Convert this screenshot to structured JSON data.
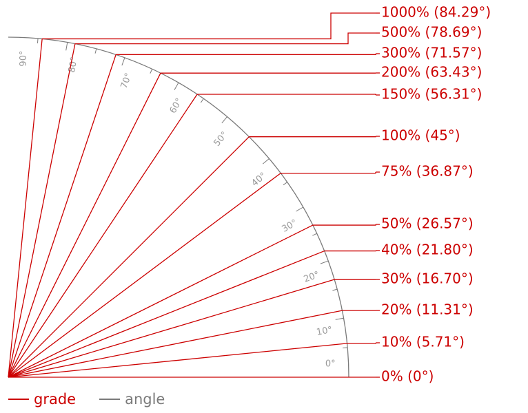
{
  "colors": {
    "grade": "#cc0000",
    "angle": "#7a7a7a",
    "angle_text": "#9a9a9a"
  },
  "legend": {
    "grade": "grade",
    "angle": "angle"
  },
  "grade_lines": [
    {
      "percent": 0,
      "angle_deg": 0,
      "label": "0% (0°)"
    },
    {
      "percent": 10,
      "angle_deg": 5.71,
      "label": "10% (5.71°)"
    },
    {
      "percent": 20,
      "angle_deg": 11.31,
      "label": "20% (11.31°)"
    },
    {
      "percent": 30,
      "angle_deg": 16.7,
      "label": "30% (16.70°)"
    },
    {
      "percent": 40,
      "angle_deg": 21.8,
      "label": "40% (21.80°)"
    },
    {
      "percent": 50,
      "angle_deg": 26.57,
      "label": "50% (26.57°)"
    },
    {
      "percent": 75,
      "angle_deg": 36.87,
      "label": "75% (36.87°)"
    },
    {
      "percent": 100,
      "angle_deg": 45,
      "label": "100% (45°)"
    },
    {
      "percent": 150,
      "angle_deg": 56.31,
      "label": "150% (56.31°)"
    },
    {
      "percent": 200,
      "angle_deg": 63.43,
      "label": "200% (63.43°)"
    },
    {
      "percent": 300,
      "angle_deg": 71.57,
      "label": "300% (71.57°)"
    },
    {
      "percent": 500,
      "angle_deg": 78.69,
      "label": "500% (78.69°)"
    },
    {
      "percent": 1000,
      "angle_deg": 84.29,
      "label": "1000% (84.29°)"
    }
  ],
  "angle_ticks": [
    {
      "deg": 0,
      "label": "0°"
    },
    {
      "deg": 10,
      "label": "10°"
    },
    {
      "deg": 20,
      "label": "20°"
    },
    {
      "deg": 30,
      "label": "30°"
    },
    {
      "deg": 40,
      "label": "40°"
    },
    {
      "deg": 50,
      "label": "50°"
    },
    {
      "deg": 60,
      "label": "60°"
    },
    {
      "deg": 70,
      "label": "70°"
    },
    {
      "deg": 80,
      "label": "80°"
    },
    {
      "deg": 90,
      "label": "90°"
    }
  ]
}
